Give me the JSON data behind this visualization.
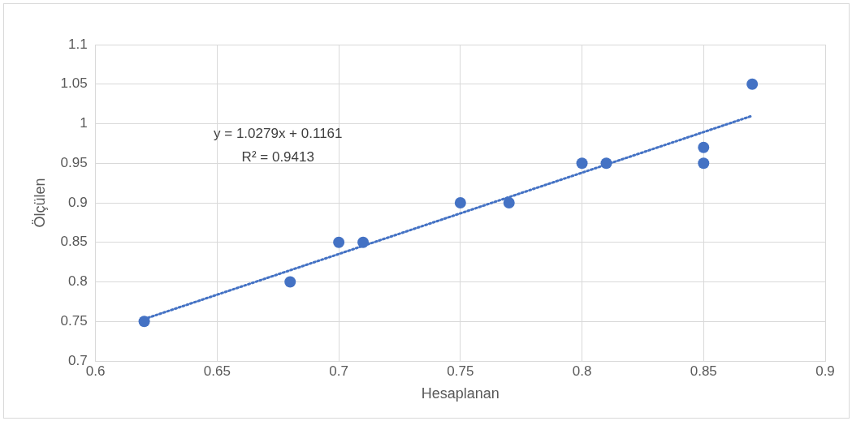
{
  "chart_data": {
    "type": "scatter",
    "xlabel": "Hesaplanan",
    "ylabel": "Ölçülen",
    "xlim": [
      0.6,
      0.9
    ],
    "xticks": [
      0.6,
      0.65,
      0.7,
      0.75,
      0.8,
      0.85,
      0.9
    ],
    "ylim": [
      0.7,
      1.1
    ],
    "yticks": [
      0.7,
      0.75,
      0.8,
      0.85,
      0.9,
      0.95,
      1,
      1.05,
      1.1
    ],
    "grid": true,
    "legend": false,
    "marker": "circle",
    "series": [
      {
        "type": "scatter",
        "color": "#4472c4",
        "x": [
          0.62,
          0.68,
          0.7,
          0.71,
          0.75,
          0.77,
          0.8,
          0.81,
          0.85,
          0.85,
          0.87
        ],
        "values": [
          0.75,
          0.8,
          0.85,
          0.85,
          0.9,
          0.9,
          0.95,
          0.95,
          0.97,
          0.95,
          1.05
        ]
      },
      {
        "type": "line",
        "color": "#4472c4",
        "line_style": "dotted",
        "marker": "none",
        "x": [
          0.62,
          0.87
        ],
        "values": [
          0.753,
          1.01
        ]
      }
    ],
    "annotations": [
      "y = 1.0279x + 0.1161",
      "R² = 0.9413"
    ]
  }
}
